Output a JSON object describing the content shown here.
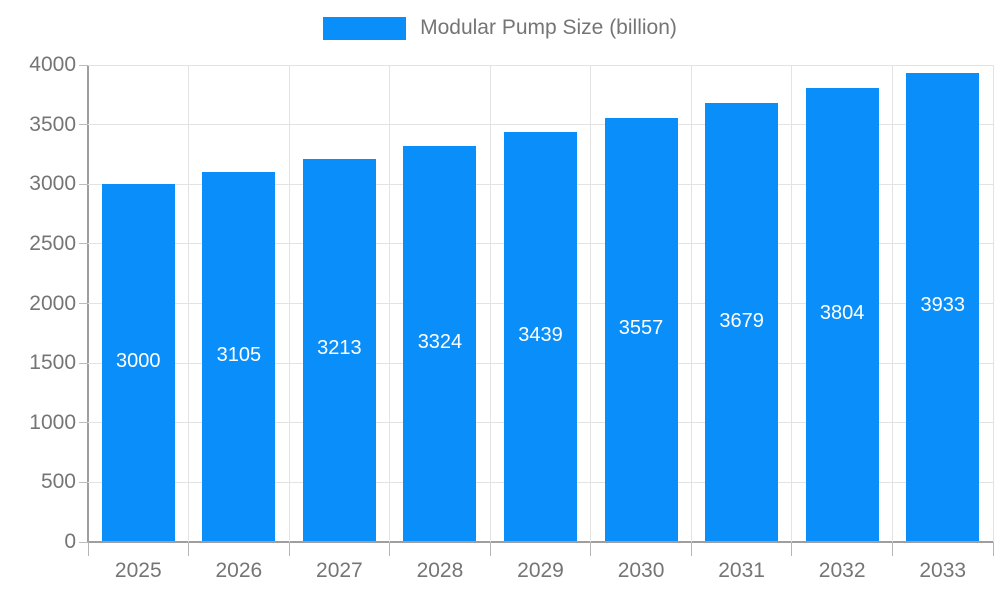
{
  "legend": {
    "label": "Modular Pump Size (billion)",
    "swatch_color": "#0a8ef9"
  },
  "chart_data": {
    "type": "bar",
    "title": "",
    "xlabel": "",
    "ylabel": "",
    "categories": [
      "2025",
      "2026",
      "2027",
      "2028",
      "2029",
      "2030",
      "2031",
      "2032",
      "2033"
    ],
    "series": [
      {
        "name": "Modular Pump Size (billion)",
        "values": [
          3000,
          3105,
          3213,
          3324,
          3439,
          3557,
          3679,
          3804,
          3933
        ],
        "color": "#0a8ef9"
      }
    ],
    "value_labels_shown": true,
    "value_label_color": "#ffffff",
    "ylim": [
      0,
      4000
    ],
    "y_ticks": [
      0,
      500,
      1000,
      1500,
      2000,
      2500,
      3000,
      3500,
      4000
    ],
    "grid": true,
    "legend_position": "top-center",
    "colors": {
      "axis_text": "#757575",
      "grid_line": "#e3e3e3",
      "axis_line": "#9e9e9e"
    }
  }
}
